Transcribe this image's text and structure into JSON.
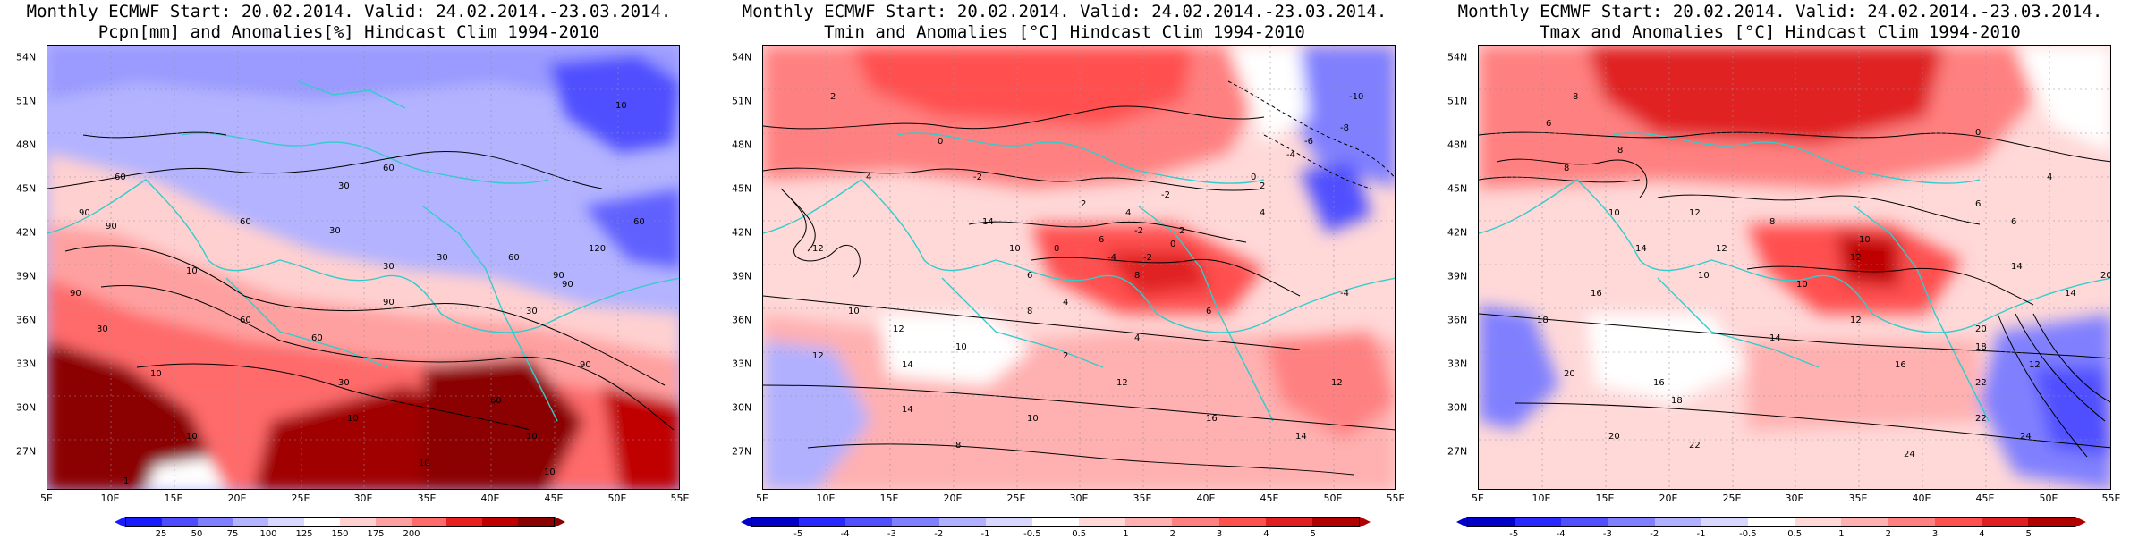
{
  "panels": [
    {
      "title_line1": "Monthly ECMWF Start: 20.02.2014. Valid: 24.02.2014.-23.03.2014.",
      "title_line2": "Pcpn[mm] and Anomalies[%] Hindcast Clim 1994-2010",
      "variable": "precipitation",
      "colorbar": {
        "ticks": [
          "25",
          "50",
          "75",
          "100",
          "125",
          "150",
          "175",
          "200"
        ],
        "colors": [
          "#1a1aff",
          "#4d4dff",
          "#8080ff",
          "#b3b3ff",
          "#d9d9ff",
          "#ffffff",
          "#ffd0d0",
          "#ffa0a0",
          "#ff6a6a",
          "#e82020",
          "#c00000",
          "#8b0000"
        ]
      },
      "contour_labels": [
        "10",
        "60",
        "90",
        "30",
        "60",
        "30",
        "90",
        "60",
        "30",
        "10",
        "60",
        "90",
        "30",
        "90",
        "60",
        "90",
        "30",
        "60",
        "120",
        "90",
        "60",
        "30",
        "10",
        "30",
        "10",
        "90",
        "60",
        "10",
        "10",
        "1",
        "10",
        "10"
      ]
    },
    {
      "title_line1": "Monthly ECMWF Start: 20.02.2014. Valid: 24.02.2014.-23.03.2014.",
      "title_line2": "Tmin and Anomalies [°C] Hindcast Clim 1994-2010",
      "variable": "tmin",
      "colorbar": {
        "ticks": [
          "-5",
          "-4",
          "-3",
          "-2",
          "-1",
          "-0.5",
          "0.5",
          "1",
          "2",
          "3",
          "4",
          "5"
        ],
        "colors": [
          "#0000c8",
          "#2828ff",
          "#5050ff",
          "#8080ff",
          "#b0b0ff",
          "#d8d8ff",
          "#ffffff",
          "#ffd8d8",
          "#ffb0b0",
          "#ff8080",
          "#ff5050",
          "#e02020",
          "#b00000"
        ]
      },
      "contour_labels": [
        "2",
        "0",
        "-2",
        "-10",
        "-8",
        "-6",
        "-4",
        "2",
        "-2",
        "0",
        "4",
        "2",
        "0",
        "-2",
        "4",
        "6",
        "-4",
        "-2",
        "0",
        "2",
        "8",
        "4",
        "12",
        "10",
        "12",
        "14",
        "10",
        "8",
        "2",
        "4",
        "6",
        "12",
        "14",
        "8",
        "12",
        "10",
        "16",
        "14",
        "12",
        "6",
        "10",
        "14",
        "4",
        "-4"
      ]
    },
    {
      "title_line1": "Monthly ECMWF Start: 20.02.2014. Valid: 24.02.2014.-23.03.2014.",
      "title_line2": "Tmax and Anomalies [°C] Hindcast Clim 1994-2010",
      "variable": "tmax",
      "colorbar": {
        "ticks": [
          "-5",
          "-4",
          "-3",
          "-2",
          "-1",
          "-0.5",
          "0.5",
          "1",
          "2",
          "3",
          "4",
          "5"
        ],
        "colors": [
          "#0000c8",
          "#2828ff",
          "#5050ff",
          "#8080ff",
          "#b0b0ff",
          "#d8d8ff",
          "#ffffff",
          "#ffd8d8",
          "#ffb0b0",
          "#ff8080",
          "#ff5050",
          "#e02020",
          "#b00000"
        ]
      },
      "contour_labels": [
        "8",
        "6",
        "0",
        "4",
        "6",
        "10",
        "8",
        "8",
        "12",
        "10",
        "14",
        "12",
        "8",
        "16",
        "10",
        "14",
        "12",
        "18",
        "16",
        "20",
        "14",
        "12",
        "22",
        "16",
        "18",
        "20",
        "22",
        "24",
        "18",
        "20",
        "22",
        "24",
        "6",
        "10",
        "14",
        "12",
        "20"
      ]
    }
  ],
  "axes": {
    "lat_labels": [
      "54N",
      "51N",
      "48N",
      "45N",
      "42N",
      "39N",
      "36N",
      "33N",
      "30N",
      "27N"
    ],
    "lon_labels": [
      "5E",
      "10E",
      "15E",
      "20E",
      "25E",
      "30E",
      "35E",
      "40E",
      "45E",
      "50E",
      "55E"
    ]
  },
  "colors": {
    "coastline": "#33cccc",
    "contour": "#000000"
  }
}
